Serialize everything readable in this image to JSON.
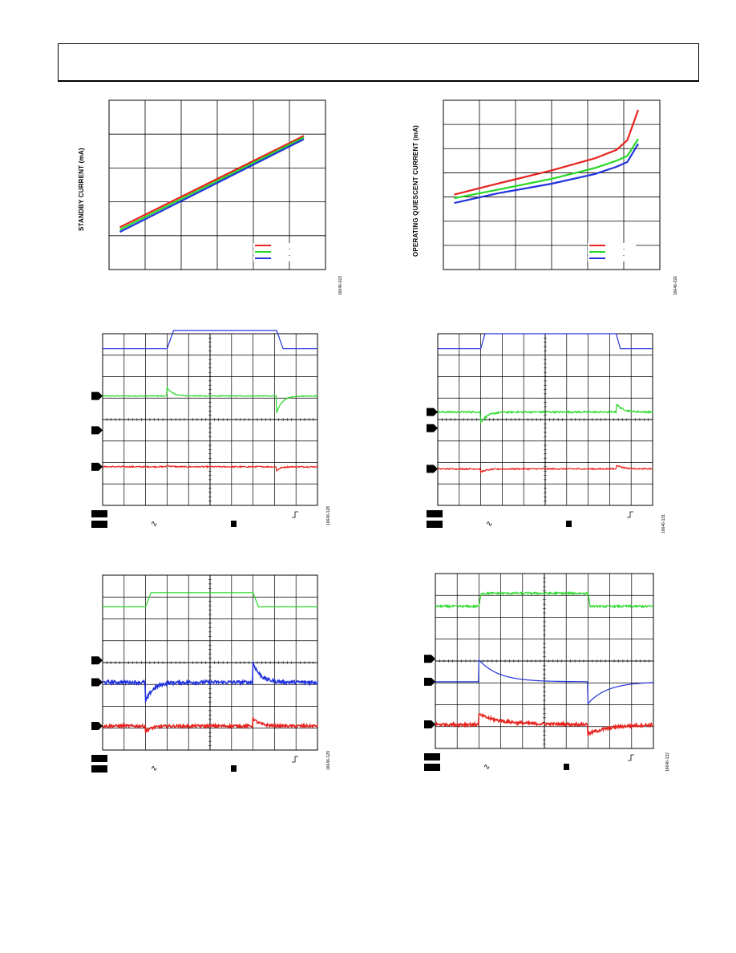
{
  "page": {
    "header_title": ""
  },
  "figures": {
    "fig1": {
      "ylabel": "STANDBY CURRENT (mA)",
      "code": "16646-023"
    },
    "fig2": {
      "ylabel": "OPERATING QUIESCENT CURRENT (mA)",
      "code": "16646-026"
    },
    "fig3": {
      "code": "16646-128"
    },
    "fig4": {
      "code": "16646-131"
    },
    "fig5": {
      "code": "16646-129"
    },
    "fig6": {
      "code": "16646-132"
    }
  },
  "chart_data": [
    {
      "id": "fig1",
      "type": "line",
      "grid": true,
      "legend_placement": "bottom-right",
      "xlim": [
        0,
        6
      ],
      "ylim": [
        0,
        5
      ],
      "series": [
        {
          "color": "#e8231e",
          "x": [
            0.3,
            5.4
          ],
          "y": [
            1.25,
            3.95
          ]
        },
        {
          "color": "#27d827",
          "x": [
            0.3,
            5.4
          ],
          "y": [
            1.18,
            3.9
          ]
        },
        {
          "color": "#2233dd",
          "x": [
            0.3,
            5.4
          ],
          "y": [
            1.11,
            3.85
          ]
        }
      ]
    },
    {
      "id": "fig2",
      "type": "line",
      "grid": true,
      "legend_placement": "bottom-right",
      "xlim": [
        0,
        6
      ],
      "ylim": [
        0,
        7
      ],
      "series": [
        {
          "color": "#e8231e",
          "x": [
            0.3,
            1.5,
            3,
            4.2,
            4.8,
            5.1,
            5.4
          ],
          "y": [
            3.1,
            3.55,
            4.1,
            4.6,
            4.95,
            5.35,
            6.6
          ]
        },
        {
          "color": "#27d827",
          "x": [
            0.3,
            1.5,
            3,
            4.2,
            4.8,
            5.1,
            5.4
          ],
          "y": [
            2.95,
            3.3,
            3.75,
            4.2,
            4.5,
            4.7,
            5.4
          ]
        },
        {
          "color": "#2233dd",
          "x": [
            0.3,
            1.5,
            3,
            4.2,
            4.8,
            5.1,
            5.4
          ],
          "y": [
            2.75,
            3.15,
            3.55,
            3.95,
            4.25,
            4.45,
            5.2
          ]
        }
      ]
    },
    {
      "id": "fig3",
      "type": "line",
      "grid": true,
      "xlim": [
        0,
        10
      ],
      "ylim": [
        0,
        8
      ],
      "series": [
        {
          "color": "#2233dd",
          "kind": "step",
          "t_rise": 3.0,
          "t_fall": 8.1,
          "low": 7.3,
          "high": 8.15,
          "ramp": 0.3
        },
        {
          "color": "#27d827",
          "kind": "spike",
          "t1": 3.0,
          "t2": 8.1,
          "base": 5.1,
          "a1": 0.4,
          "a2": -0.8,
          "tau": 0.25,
          "noise": 0.02
        },
        {
          "color": "#e8231e",
          "kind": "spike",
          "t1": 3.0,
          "t2": 8.1,
          "base": 1.8,
          "a1": 0.08,
          "a2": -0.2,
          "tau": 0.15,
          "noise": 0.03
        }
      ],
      "markers": [
        5.1,
        3.5,
        1.8
      ]
    },
    {
      "id": "fig4",
      "type": "line",
      "grid": true,
      "xlim": [
        0,
        10
      ],
      "ylim": [
        0,
        8
      ],
      "series": [
        {
          "color": "#2233dd",
          "kind": "step",
          "t_rise": 2.0,
          "t_fall": 8.3,
          "low": 7.3,
          "high": 8.0,
          "ramp": 0.2
        },
        {
          "color": "#27d827",
          "kind": "spike",
          "t1": 2.0,
          "t2": 8.3,
          "base": 4.35,
          "a1": -0.5,
          "a2": 0.4,
          "tau": 0.3,
          "noise": 0.04
        },
        {
          "color": "#e8231e",
          "kind": "spike",
          "t1": 2.0,
          "t2": 8.3,
          "base": 1.7,
          "a1": -0.15,
          "a2": 0.2,
          "tau": 0.3,
          "noise": 0.03
        }
      ],
      "markers": [
        4.35,
        3.6,
        1.7
      ]
    },
    {
      "id": "fig5",
      "type": "line",
      "grid": true,
      "xlim": [
        0,
        10
      ],
      "ylim": [
        0,
        8
      ],
      "series": [
        {
          "color": "#27d827",
          "kind": "step",
          "t_rise": 2.0,
          "t_fall": 7.0,
          "low": 6.55,
          "high": 7.2,
          "ramp": 0.25
        },
        {
          "color": "#2233dd",
          "kind": "spike",
          "t1": 2.0,
          "t2": 7.0,
          "base": 3.1,
          "a1": -0.9,
          "a2": 0.9,
          "tau": 0.35,
          "noise": 0.08
        },
        {
          "color": "#e8231e",
          "kind": "spike",
          "t1": 2.0,
          "t2": 7.0,
          "base": 1.1,
          "a1": -0.25,
          "a2": 0.35,
          "tau": 0.3,
          "noise": 0.06
        }
      ],
      "markers": [
        4.1,
        3.1,
        1.1
      ]
    },
    {
      "id": "fig6",
      "type": "line",
      "grid": true,
      "xlim": [
        0,
        10
      ],
      "ylim": [
        0,
        8
      ],
      "series": [
        {
          "color": "#27d827",
          "kind": "step",
          "t_rise": 2.0,
          "t_fall": 7.0,
          "low": 6.5,
          "high": 7.1,
          "ramp": 0.1,
          "noise": 0.05
        },
        {
          "color": "#2233dd",
          "kind": "spike",
          "t1": 2.0,
          "t2": 7.0,
          "base": 3.05,
          "a1": 1.0,
          "a2": -1.0,
          "tau": 0.9,
          "noise": 0.0
        },
        {
          "color": "#e8231e",
          "kind": "spike",
          "t1": 2.0,
          "t2": 7.0,
          "base": 1.1,
          "a1": 0.45,
          "a2": -0.45,
          "tau": 1.0,
          "noise": 0.07
        }
      ],
      "markers": [
        4.1,
        3.05,
        1.1
      ]
    }
  ]
}
